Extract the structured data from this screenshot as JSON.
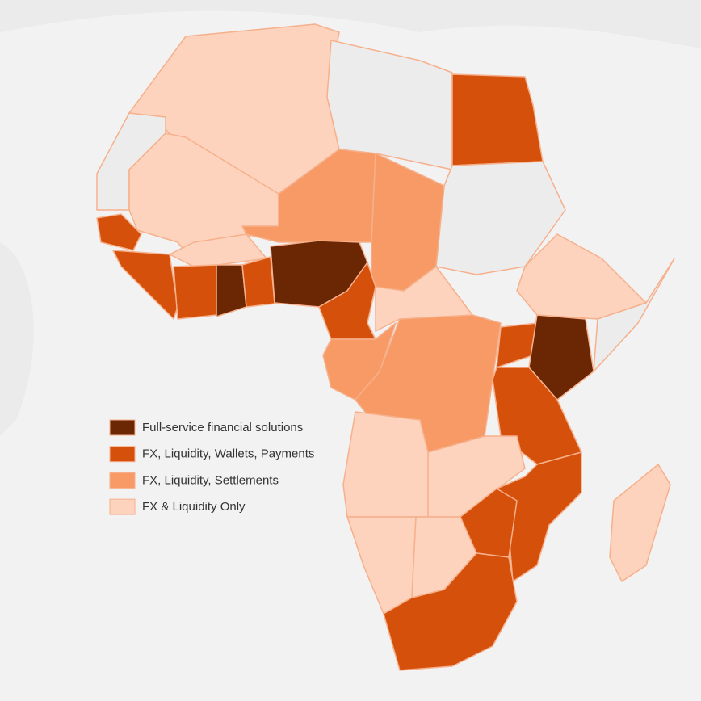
{
  "legend": {
    "items": [
      {
        "label": "Full-service financial solutions",
        "color": "#6b2604"
      },
      {
        "label": "FX, Liquidity, Wallets, Payments",
        "color": "#d4500b"
      },
      {
        "label": "FX, Liquidity, Settlements",
        "color": "#f79a66"
      },
      {
        "label": "FX & Liquidity Only",
        "color": "#fdd3bd"
      }
    ]
  }
}
